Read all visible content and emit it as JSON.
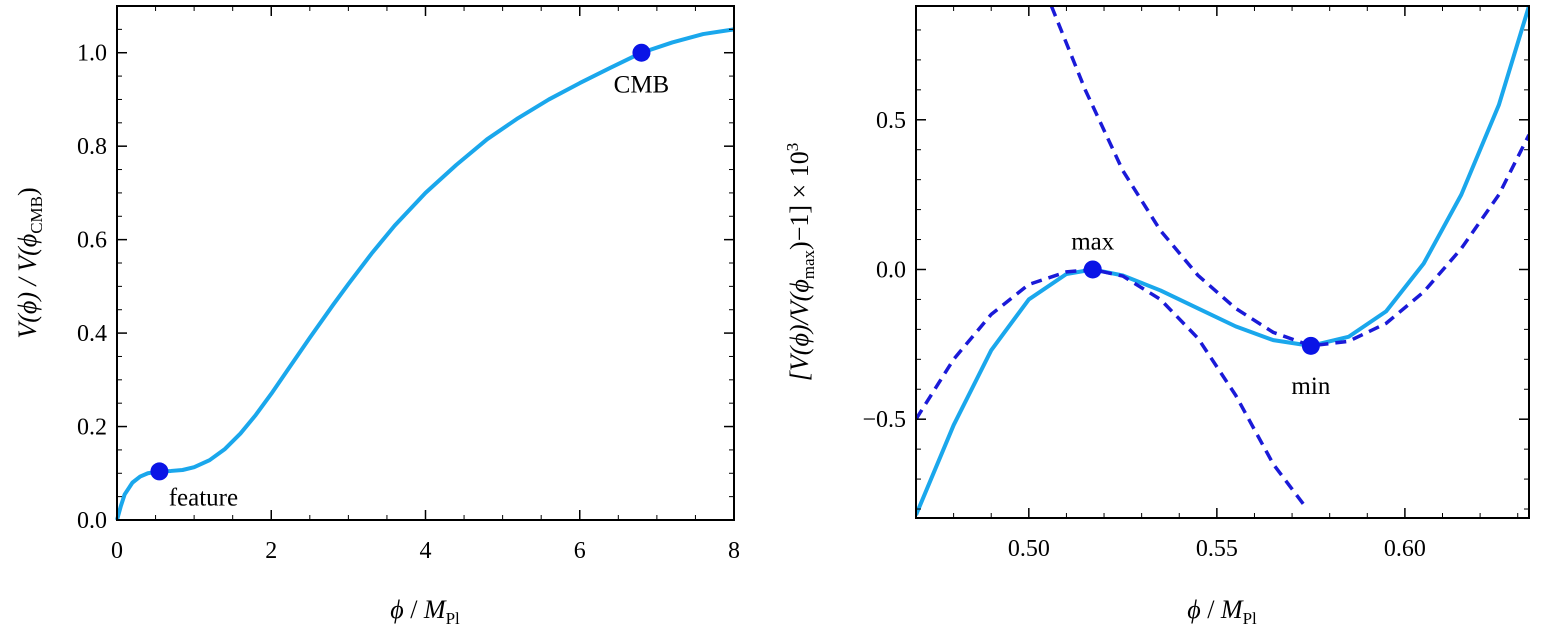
{
  "chart_data": [
    {
      "type": "line",
      "xlabel": "ϕ / M_Pl",
      "xlabel_parts": {
        "phi": "ϕ",
        "sep": " / ",
        "m": "M",
        "sub": "Pl"
      },
      "ylabel": "V(ϕ) / V(ϕ_CMB)",
      "ylabel_parts": {
        "pre": "V(ϕ) / V(ϕ",
        "sub": "CMB",
        "post": ")"
      },
      "xlim": [
        0,
        8
      ],
      "ylim": [
        0,
        1.1
      ],
      "x_ticks": [
        "0",
        "2",
        "4",
        "6",
        "8"
      ],
      "y_ticks": [
        "0.0",
        "0.2",
        "0.4",
        "0.6",
        "0.8",
        "1.0"
      ],
      "series": [
        {
          "style": "solid",
          "color": "#1aa7ec",
          "x": [
            0,
            0.05,
            0.1,
            0.2,
            0.3,
            0.4,
            0.55,
            0.7,
            0.85,
            1.0,
            1.2,
            1.4,
            1.6,
            1.8,
            2.0,
            2.2,
            2.5,
            2.8,
            3.0,
            3.3,
            3.6,
            4.0,
            4.4,
            4.8,
            5.2,
            5.6,
            6.0,
            6.4,
            6.8,
            7.2,
            7.6,
            8.0
          ],
          "y": [
            0.0,
            0.03,
            0.055,
            0.08,
            0.093,
            0.1,
            0.104,
            0.105,
            0.107,
            0.113,
            0.128,
            0.152,
            0.185,
            0.225,
            0.27,
            0.318,
            0.39,
            0.46,
            0.505,
            0.57,
            0.63,
            0.7,
            0.76,
            0.815,
            0.86,
            0.9,
            0.935,
            0.968,
            1.0,
            1.022,
            1.04,
            1.05
          ]
        }
      ],
      "points": [
        {
          "label": "feature",
          "x": 0.55,
          "y": 0.104,
          "color": "#0a14e6"
        },
        {
          "label": "CMB",
          "x": 6.8,
          "y": 1.0,
          "color": "#0a14e6"
        }
      ]
    },
    {
      "type": "line",
      "xlabel": "ϕ / M_Pl",
      "xlabel_parts": {
        "phi": "ϕ",
        "sep": " / ",
        "m": "M",
        "sub": "Pl"
      },
      "ylabel": "[V(ϕ)/V(ϕ_max)−1] × 10^3",
      "ylabel_parts": {
        "pre": "[V(ϕ)/V(ϕ",
        "sub": "max",
        "mid": ")−1] × 10",
        "sup": "3"
      },
      "xlim": [
        0.47,
        0.633
      ],
      "ylim": [
        -0.83,
        0.88
      ],
      "x_ticks": [
        "0.50",
        "0.55",
        "0.60"
      ],
      "y_ticks": [
        "−0.5",
        "0.0",
        "0.5"
      ],
      "series": [
        {
          "style": "solid",
          "color": "#1aa7ec",
          "x": [
            0.47,
            0.48,
            0.49,
            0.5,
            0.51,
            0.517,
            0.525,
            0.535,
            0.545,
            0.555,
            0.565,
            0.575,
            0.585,
            0.595,
            0.605,
            0.615,
            0.625,
            0.633
          ],
          "y": [
            -0.82,
            -0.52,
            -0.27,
            -0.1,
            -0.015,
            0.0,
            -0.02,
            -0.07,
            -0.13,
            -0.19,
            -0.236,
            -0.255,
            -0.225,
            -0.14,
            0.02,
            0.25,
            0.55,
            0.88
          ]
        },
        {
          "style": "dashed",
          "color": "#1a1ad8",
          "x": [
            0.47,
            0.48,
            0.49,
            0.5,
            0.51,
            0.517,
            0.525,
            0.535,
            0.545,
            0.555,
            0.565,
            0.574
          ],
          "y": [
            -0.5,
            -0.3,
            -0.15,
            -0.05,
            -0.008,
            0.0,
            -0.022,
            -0.1,
            -0.23,
            -0.42,
            -0.65,
            -0.8
          ]
        },
        {
          "style": "dashed",
          "color": "#1a1ad8",
          "x": [
            0.506,
            0.515,
            0.525,
            0.535,
            0.545,
            0.555,
            0.565,
            0.575,
            0.585,
            0.595,
            0.605,
            0.615,
            0.625,
            0.633
          ],
          "y": [
            0.88,
            0.6,
            0.33,
            0.13,
            -0.02,
            -0.13,
            -0.21,
            -0.255,
            -0.24,
            -0.18,
            -0.075,
            0.07,
            0.25,
            0.45
          ]
        }
      ],
      "points": [
        {
          "label": "max",
          "x": 0.517,
          "y": 0.0,
          "color": "#0a14e6"
        },
        {
          "label": "min",
          "x": 0.575,
          "y": -0.255,
          "color": "#0a14e6"
        }
      ]
    }
  ]
}
